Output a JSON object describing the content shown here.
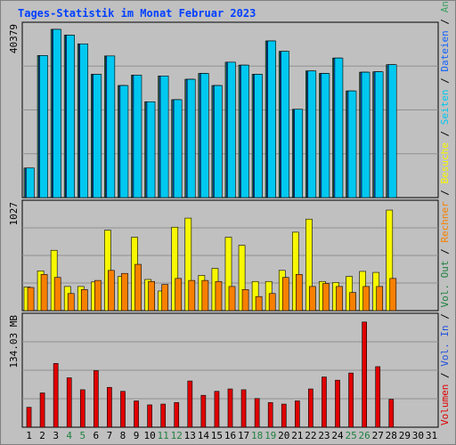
{
  "title": "Tages-Statistik im Monat Februar 2023",
  "colors": {
    "background": "#c0c0c0",
    "title": "#0040ff",
    "axis_text": "#000000",
    "weekend_day": "#208040",
    "anfragen": "#3aa060",
    "dateien": "#1060ff",
    "seiten": "#00c8f0",
    "besuche": "#f8f800",
    "rechner": "#f88000",
    "volumen": "#e00000",
    "vol_in": "#2050e0",
    "vol_out": "#208040",
    "separator": "#000000",
    "gridline": "#909090",
    "bar_border": "#000000"
  },
  "legend_right": [
    {
      "text": "Volumen",
      "color_key": "volumen"
    },
    {
      "text": " / ",
      "color_key": "separator"
    },
    {
      "text": "Vol. In",
      "color_key": "vol_in"
    },
    {
      "text": " / ",
      "color_key": "separator"
    },
    {
      "text": "Vol. Out",
      "color_key": "vol_out"
    },
    {
      "text": " / ",
      "color_key": "separator"
    },
    {
      "text": "Rechner",
      "color_key": "rechner"
    },
    {
      "text": " / ",
      "color_key": "separator"
    },
    {
      "text": "Besuche",
      "color_key": "besuche"
    },
    {
      "text": " / ",
      "color_key": "separator"
    },
    {
      "text": "Seiten",
      "color_key": "seiten"
    },
    {
      "text": " / ",
      "color_key": "separator"
    },
    {
      "text": "Dateien",
      "color_key": "dateien"
    },
    {
      "text": " / ",
      "color_key": "separator"
    },
    {
      "text": "Anfragen",
      "color_key": "anfragen"
    }
  ],
  "chart_data": [
    {
      "type": "bar",
      "panel": "hits",
      "ymax_label": "40379",
      "ylim": [
        0,
        40379
      ],
      "categories": [
        "1",
        "2",
        "3",
        "4",
        "5",
        "6",
        "7",
        "8",
        "9",
        "10",
        "11",
        "12",
        "13",
        "14",
        "15",
        "16",
        "17",
        "18",
        "19",
        "20",
        "21",
        "22",
        "23",
        "24",
        "25",
        "26",
        "27",
        "28",
        "29",
        "30",
        "31"
      ],
      "weekend_days": [
        "4",
        "5",
        "11",
        "12",
        "18",
        "19",
        "25",
        "26"
      ],
      "series": [
        {
          "color_key": "anfragen",
          "values": [
            7100,
            34100,
            40379,
            39000,
            36900,
            29600,
            34000,
            26900,
            29400,
            23000,
            29200,
            23500,
            28400,
            29800,
            26900,
            32500,
            31800,
            29600,
            37600,
            35100,
            21200,
            30400,
            29800,
            33500,
            25600,
            30100,
            30200,
            31900,
            0,
            0,
            0
          ]
        },
        {
          "color_key": "dateien",
          "values": [
            7100,
            34100,
            40379,
            39000,
            36900,
            29600,
            34000,
            26900,
            29400,
            23000,
            29200,
            23500,
            28400,
            29800,
            26900,
            32500,
            31800,
            29600,
            37600,
            35100,
            21200,
            30400,
            29800,
            33500,
            25600,
            30100,
            30200,
            31900,
            0,
            0,
            0
          ]
        },
        {
          "color_key": "seiten",
          "values": [
            7100,
            34100,
            40379,
            39000,
            36900,
            29600,
            34000,
            26900,
            29400,
            23000,
            29200,
            23500,
            28400,
            29800,
            26900,
            32500,
            31800,
            29600,
            37600,
            35100,
            21200,
            30400,
            29800,
            33500,
            25600,
            30100,
            30200,
            31900,
            0,
            0,
            0
          ]
        }
      ]
    },
    {
      "type": "bar",
      "panel": "visits",
      "ymax_label": "1027",
      "ylim": [
        0,
        1027
      ],
      "categories": [
        "1",
        "2",
        "3",
        "4",
        "5",
        "6",
        "7",
        "8",
        "9",
        "10",
        "11",
        "12",
        "13",
        "14",
        "15",
        "16",
        "17",
        "18",
        "19",
        "20",
        "21",
        "22",
        "23",
        "24",
        "25",
        "26",
        "27",
        "28",
        "29",
        "30",
        "31"
      ],
      "series": [
        {
          "color_key": "besuche",
          "values": [
            235,
            395,
            600,
            240,
            240,
            285,
            800,
            340,
            730,
            310,
            195,
            830,
            920,
            350,
            420,
            730,
            650,
            290,
            290,
            400,
            780,
            910,
            290,
            280,
            340,
            390,
            380,
            1000,
            0,
            0,
            0
          ]
        },
        {
          "color_key": "rechner",
          "values": [
            230,
            360,
            330,
            170,
            210,
            300,
            400,
            370,
            460,
            290,
            260,
            320,
            300,
            300,
            290,
            240,
            210,
            140,
            170,
            330,
            360,
            240,
            270,
            240,
            180,
            240,
            240,
            320,
            0,
            0,
            0
          ]
        }
      ]
    },
    {
      "type": "bar",
      "panel": "volume",
      "ymax_label": "134.03 MB",
      "ylim": [
        0,
        134.03
      ],
      "unit": "MB",
      "categories": [
        "1",
        "2",
        "3",
        "4",
        "5",
        "6",
        "7",
        "8",
        "9",
        "10",
        "11",
        "12",
        "13",
        "14",
        "15",
        "16",
        "17",
        "18",
        "19",
        "20",
        "21",
        "22",
        "23",
        "24",
        "25",
        "26",
        "27",
        "28",
        "29",
        "30",
        "31"
      ],
      "series": [
        {
          "color_key": "volumen",
          "values": [
            25,
            43,
            80,
            62,
            47,
            71,
            50,
            45,
            33,
            28,
            29,
            31,
            58,
            40,
            45,
            48,
            47,
            36,
            31,
            29,
            33,
            48,
            63,
            59,
            68,
            132,
            76,
            35,
            0,
            0,
            0
          ]
        }
      ]
    }
  ]
}
